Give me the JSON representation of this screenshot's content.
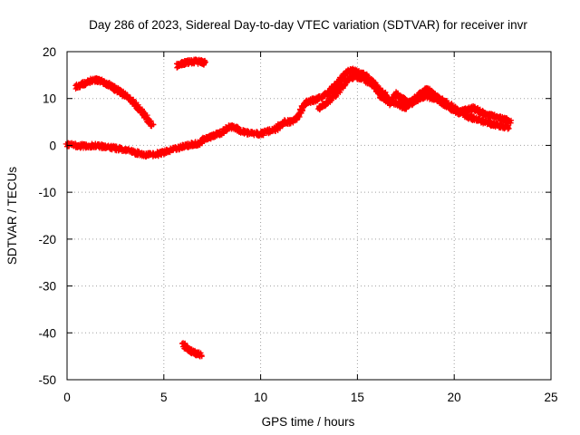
{
  "chart_data": {
    "type": "scatter",
    "title": "Day 286 of 2023, Sidereal Day-to-day VTEC variation (SDTVAR) for receiver invr",
    "xlabel": "GPS time / hours",
    "ylabel": "SDTVAR / TECUs",
    "xlim": [
      0,
      25
    ],
    "ylim": [
      -50,
      20
    ],
    "xticks": [
      0,
      5,
      10,
      15,
      20,
      25
    ],
    "yticks": [
      -50,
      -40,
      -30,
      -20,
      -10,
      0,
      10,
      20
    ],
    "grid": true,
    "marker": "plus",
    "color": "#ff0000",
    "series": [
      {
        "name": "main-track",
        "points": [
          [
            0.0,
            0.2
          ],
          [
            0.5,
            0.0
          ],
          [
            1.0,
            -0.2
          ],
          [
            1.5,
            0.0
          ],
          [
            2.0,
            -0.3
          ],
          [
            2.5,
            -0.6
          ],
          [
            3.0,
            -1.0
          ],
          [
            3.5,
            -1.5
          ],
          [
            4.0,
            -2.0
          ],
          [
            4.5,
            -2.0
          ],
          [
            5.0,
            -1.5
          ],
          [
            5.5,
            -0.8
          ],
          [
            6.0,
            -0.2
          ],
          [
            6.5,
            0.2
          ],
          [
            6.8,
            0.5
          ],
          [
            7.2,
            1.5
          ],
          [
            7.6,
            2.0
          ],
          [
            8.0,
            2.8
          ],
          [
            8.4,
            4.0
          ],
          [
            8.8,
            3.5
          ],
          [
            9.2,
            2.8
          ],
          [
            9.6,
            2.5
          ],
          [
            10.0,
            2.5
          ],
          [
            10.4,
            3.0
          ],
          [
            10.8,
            3.5
          ],
          [
            11.2,
            5.0
          ],
          [
            11.6,
            5.0
          ],
          [
            12.0,
            6.5
          ],
          [
            12.3,
            9.0
          ],
          [
            12.6,
            9.5
          ],
          [
            13.0,
            10.0
          ],
          [
            13.4,
            11.0
          ],
          [
            13.8,
            12.5
          ],
          [
            14.1,
            14.0
          ],
          [
            14.4,
            15.5
          ],
          [
            14.7,
            16.0
          ],
          [
            15.0,
            15.5
          ],
          [
            15.4,
            15.0
          ],
          [
            15.8,
            13.5
          ],
          [
            16.1,
            12.0
          ],
          [
            16.4,
            11.0
          ],
          [
            16.7,
            9.0
          ],
          [
            17.0,
            11.0
          ],
          [
            17.3,
            10.0
          ],
          [
            17.6,
            9.0
          ],
          [
            18.0,
            10.0
          ],
          [
            18.3,
            11.0
          ],
          [
            18.6,
            12.0
          ],
          [
            18.9,
            11.0
          ],
          [
            19.2,
            10.0
          ],
          [
            19.6,
            9.0
          ],
          [
            20.0,
            8.0
          ],
          [
            20.4,
            7.0
          ],
          [
            20.8,
            6.0
          ],
          [
            21.2,
            5.5
          ],
          [
            21.6,
            5.0
          ],
          [
            22.0,
            4.5
          ],
          [
            22.4,
            4.2
          ],
          [
            22.8,
            3.8
          ]
        ]
      },
      {
        "name": "parallel-track",
        "points": [
          [
            13.0,
            8.0
          ],
          [
            13.4,
            9.0
          ],
          [
            13.8,
            10.5
          ],
          [
            14.2,
            12.5
          ],
          [
            14.6,
            14.5
          ],
          [
            15.0,
            14.5
          ],
          [
            15.4,
            14.0
          ],
          [
            15.8,
            13.0
          ],
          [
            16.2,
            10.5
          ],
          [
            16.6,
            9.5
          ],
          [
            17.0,
            9.0
          ],
          [
            17.4,
            8.0
          ],
          [
            17.8,
            9.0
          ],
          [
            18.2,
            10.0
          ],
          [
            18.6,
            10.5
          ],
          [
            19.0,
            10.0
          ],
          [
            19.4,
            9.0
          ],
          [
            19.8,
            8.0
          ],
          [
            20.2,
            7.0
          ],
          [
            20.6,
            7.5
          ],
          [
            21.0,
            8.0
          ],
          [
            21.4,
            7.0
          ],
          [
            21.8,
            6.5
          ],
          [
            22.2,
            6.0
          ],
          [
            22.6,
            5.5
          ],
          [
            22.9,
            5.0
          ]
        ]
      },
      {
        "name": "arc-track",
        "points": [
          [
            0.5,
            12.5
          ],
          [
            0.8,
            13.0
          ],
          [
            1.1,
            13.5
          ],
          [
            1.4,
            14.0
          ],
          [
            1.7,
            13.8
          ],
          [
            2.0,
            13.2
          ],
          [
            2.3,
            12.5
          ],
          [
            2.6,
            11.8
          ],
          [
            2.9,
            11.0
          ],
          [
            3.2,
            10.0
          ],
          [
            3.5,
            9.0
          ],
          [
            3.8,
            7.5
          ],
          [
            4.1,
            6.0
          ],
          [
            4.4,
            4.0
          ]
        ]
      },
      {
        "name": "top-segment",
        "points": [
          [
            5.7,
            17.0
          ],
          [
            6.0,
            17.5
          ],
          [
            6.3,
            17.8
          ],
          [
            6.6,
            17.9
          ],
          [
            6.9,
            17.8
          ],
          [
            7.1,
            17.6
          ]
        ]
      },
      {
        "name": "bottom-segment",
        "points": [
          [
            6.0,
            -42.5
          ],
          [
            6.3,
            -43.5
          ],
          [
            6.6,
            -44.3
          ],
          [
            6.9,
            -44.8
          ]
        ]
      }
    ]
  }
}
